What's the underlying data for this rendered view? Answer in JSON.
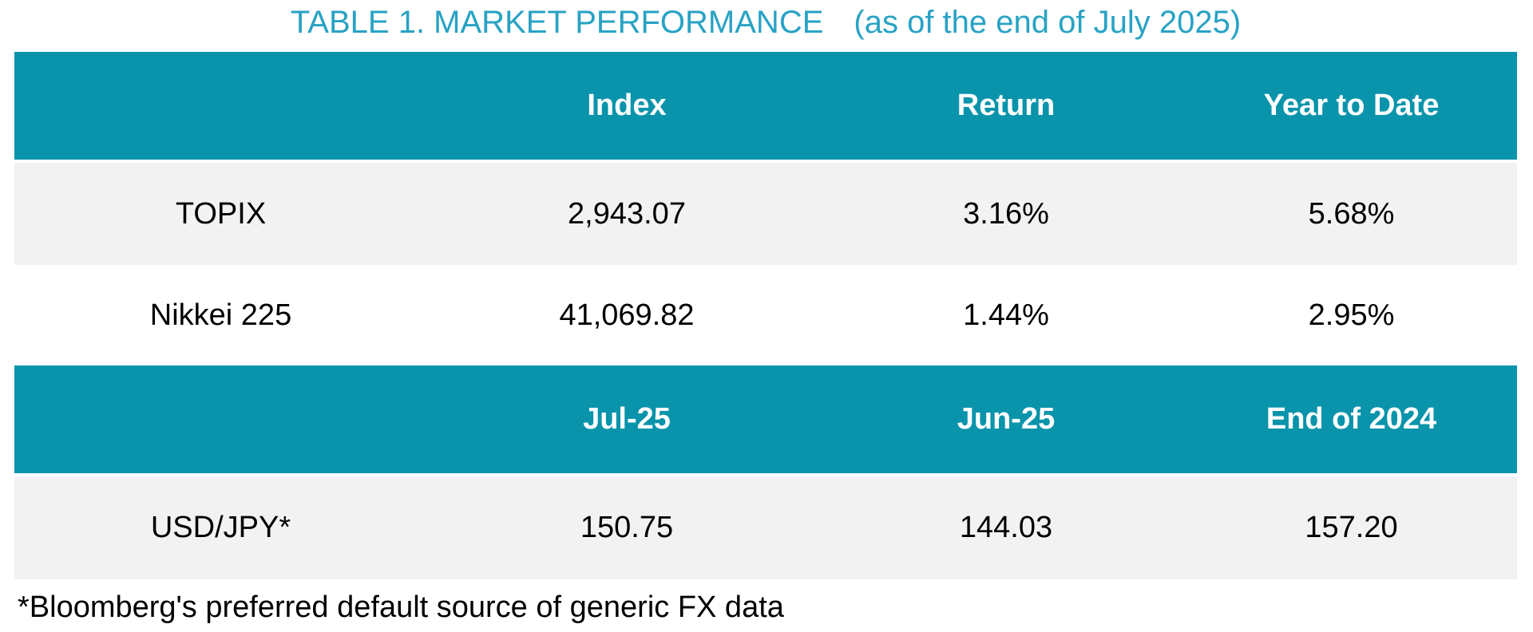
{
  "title": {
    "main": "TABLE 1. MARKET PERFORMANCE",
    "suffix": "(as of the end of July 2025)"
  },
  "colors": {
    "header_teal": "#0a94ab",
    "title_teal": "#28a2c4",
    "row_gray": "#f2f2f2",
    "header_text": "#ffffff",
    "body_text": "#000000"
  },
  "table1": {
    "headers": [
      "",
      "Index",
      "Return",
      "Year to Date"
    ],
    "rows": [
      {
        "label": "TOPIX",
        "values": [
          "2,943.07",
          "3.16%",
          "5.68%"
        ]
      },
      {
        "label": "Nikkei 225",
        "values": [
          "41,069.82",
          "1.44%",
          "2.95%"
        ]
      }
    ]
  },
  "table2": {
    "headers": [
      "",
      "Jul-25",
      "Jun-25",
      "End of 2024"
    ],
    "rows": [
      {
        "label": "USD/JPY*",
        "values": [
          "150.75",
          "144.03",
          "157.20"
        ]
      }
    ]
  },
  "footnote": "*Bloomberg's preferred default source of generic FX data"
}
